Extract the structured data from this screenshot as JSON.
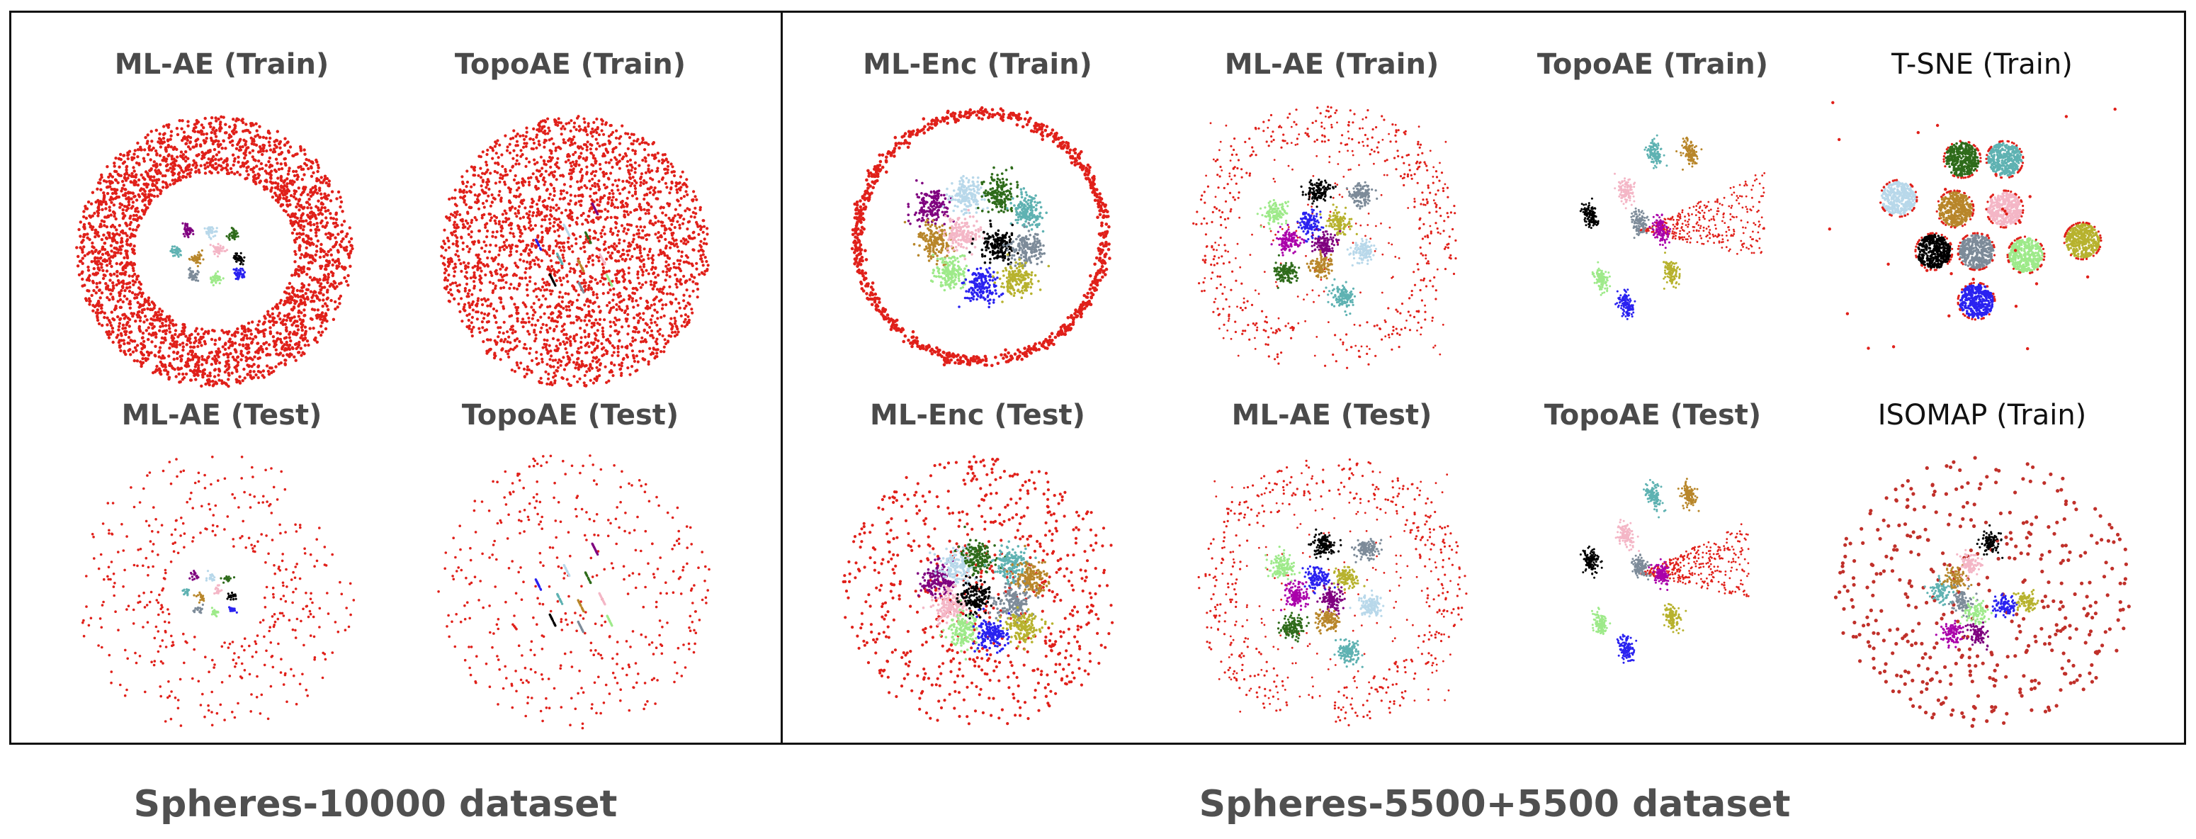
{
  "groups": [
    {
      "caption": "Spheres-10000 dataset",
      "panels": [
        {
          "title": "ML-AE (Train)",
          "bold": true,
          "kind": "ring",
          "density": "dense"
        },
        {
          "title": "TopoAE (Train)",
          "bold": true,
          "kind": "filled",
          "density": "dense"
        },
        {
          "title": "ML-AE (Test)",
          "bold": true,
          "kind": "ring",
          "density": "sparse"
        },
        {
          "title": "TopoAE (Test)",
          "bold": true,
          "kind": "filled",
          "density": "sparse"
        }
      ]
    },
    {
      "caption": "Spheres-5500+5500 dataset",
      "panels": [
        {
          "title": "ML-Enc (Train)",
          "bold": true,
          "kind": "circle",
          "density": "dense"
        },
        {
          "title": "ML-AE (Train)",
          "bold": true,
          "kind": "arc",
          "density": "medium"
        },
        {
          "title": "TopoAE (Train)",
          "bold": true,
          "kind": "fan",
          "density": "medium"
        },
        {
          "title": "T-SNE (Train)",
          "bold": false,
          "kind": "tsne",
          "density": "sparse"
        },
        {
          "title": "ML-Enc (Test)",
          "bold": true,
          "kind": "cloud",
          "density": "medium"
        },
        {
          "title": "ML-AE (Test)",
          "bold": true,
          "kind": "arc",
          "density": "medium"
        },
        {
          "title": "TopoAE (Test)",
          "bold": true,
          "kind": "fan",
          "density": "medium"
        },
        {
          "title": "ISOMAP (Train)",
          "bold": false,
          "kind": "isomap",
          "density": "sparse"
        }
      ]
    }
  ],
  "colors": {
    "outer": "#e0201a",
    "clusters": [
      "#7f007f",
      "#b8d8ea",
      "#2e6b1a",
      "#5fb2b2",
      "#b8862a",
      "#f4b6c6",
      "#000000",
      "#7d8b99",
      "#9eea8a",
      "#2a22f0",
      "#b7b22e",
      "#aa00aa"
    ]
  }
}
